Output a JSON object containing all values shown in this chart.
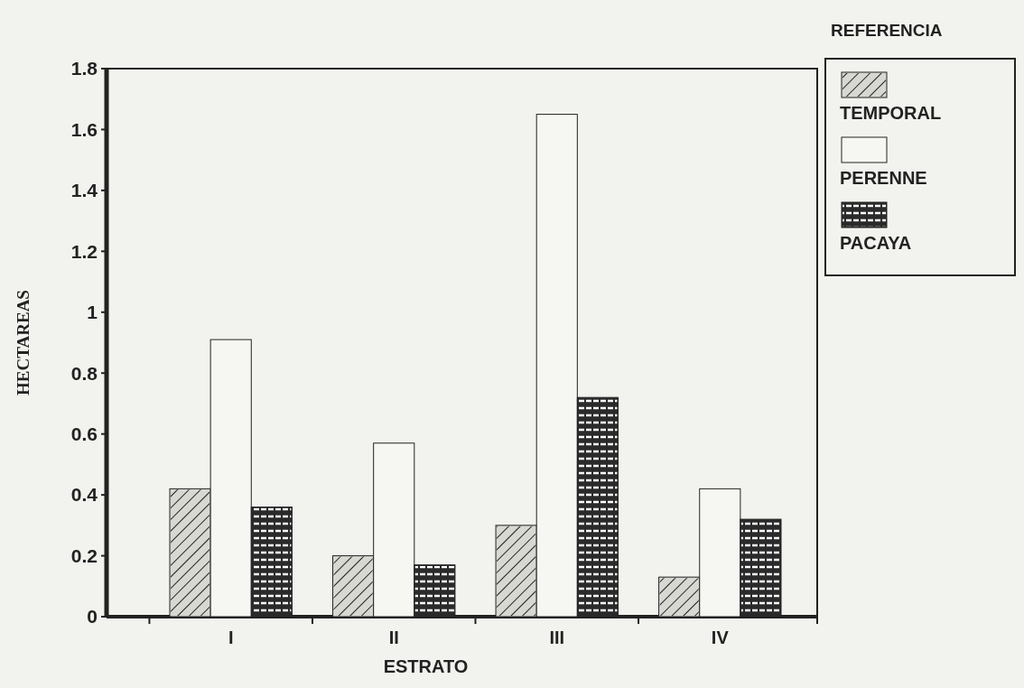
{
  "chart_data": {
    "type": "bar",
    "xlabel": "ESTRATO",
    "ylabel": "HECTAREAS",
    "legend_title": "REFERENCIA",
    "categories": [
      "I",
      "II",
      "III",
      "IV"
    ],
    "series": [
      {
        "name": "TEMPORAL",
        "color": "#d8d8d2",
        "values": [
          0.42,
          0.2,
          0.3,
          0.13
        ]
      },
      {
        "name": "PERENNE",
        "color": "#f6f6f2",
        "values": [
          0.91,
          0.57,
          1.65,
          0.42
        ]
      },
      {
        "name": "PACAYA",
        "color": "#2a2a2a",
        "values": [
          0.36,
          0.17,
          0.72,
          0.32
        ]
      }
    ],
    "ylim": [
      0,
      1.8
    ],
    "yticks": [
      0,
      0.2,
      0.4,
      0.6,
      0.8,
      1,
      1.2,
      1.4,
      1.6,
      1.8
    ],
    "legend": "top right",
    "grid": false
  }
}
